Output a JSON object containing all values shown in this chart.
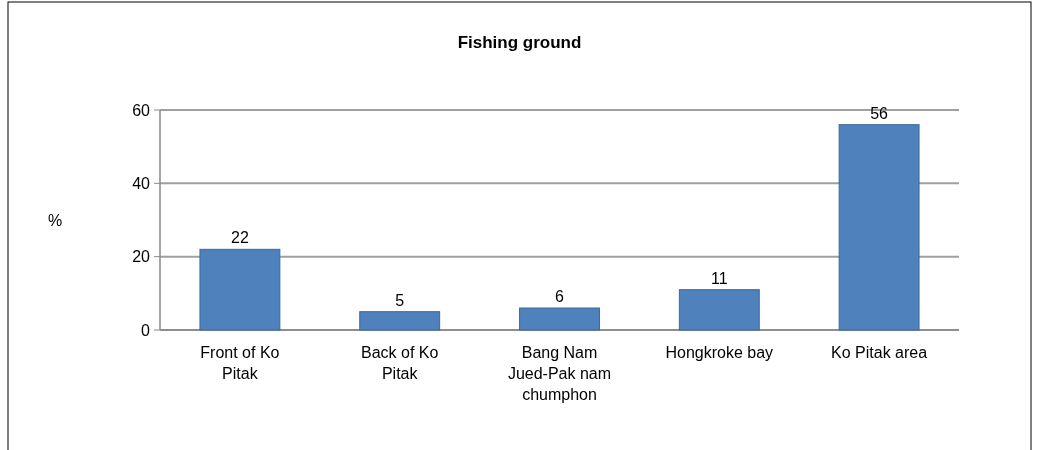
{
  "chart_data": {
    "type": "bar",
    "title": "Fishing ground",
    "ylabel": "%",
    "categories": [
      "Front of Ko Pitak",
      "Back of Ko Pitak",
      "Bang Nam Jued-Pak nam chumphon",
      "Hongkroke bay",
      "Ko Pitak area"
    ],
    "values": [
      22,
      5,
      6,
      11,
      56
    ],
    "color": "#4f81bd",
    "ylim": [
      0,
      60
    ],
    "yticks": [
      0,
      20,
      40,
      60
    ],
    "grid": "y",
    "data_labels": true
  }
}
